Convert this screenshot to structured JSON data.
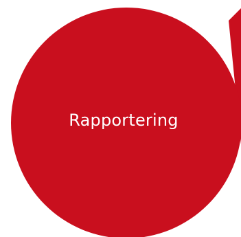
{
  "colors": {
    "background": "#ffffff",
    "circle_fill": "#c90f1e",
    "label_text": "#ffffff"
  },
  "diagram": {
    "circle": {
      "label": "Rapportering"
    },
    "arrow": {
      "icon": "pointer-triangle-icon"
    }
  }
}
